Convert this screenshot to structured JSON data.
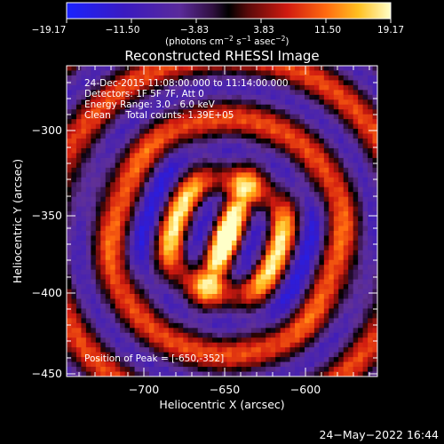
{
  "colorbar": {
    "ticks": [
      "−19.17",
      "−11.50",
      "−3.83",
      "3.83",
      "11.50",
      "19.17"
    ],
    "units_main": "(photons cm",
    "units_sup1": "−2",
    "units_mid": " s",
    "units_sup2": "−1",
    "units_end": " asec",
    "units_sup3": "−2",
    "units_close": ")"
  },
  "image": {
    "title": "Reconstructed RHESSI Image",
    "info": [
      "24-Dec-2015 11:08:00.000 to 11:14:00.000",
      "Detectors: 1F 5F 7F, Att 0",
      "Energy Range: 3.0 - 6.0 keV",
      "Clean     Total counts: 1.39E+05"
    ],
    "peak_label": "Position of Peak = [-650,-352]"
  },
  "axes": {
    "xlabel": "Heliocentric X (arcsec)",
    "ylabel": "Heliocentric Y (arcsec)",
    "xticks": [
      "−700",
      "−650",
      "−600"
    ],
    "yticks": [
      "−300",
      "−350",
      "−400",
      "−450"
    ]
  },
  "footer": {
    "date": "24−May−2022 16:44"
  }
}
